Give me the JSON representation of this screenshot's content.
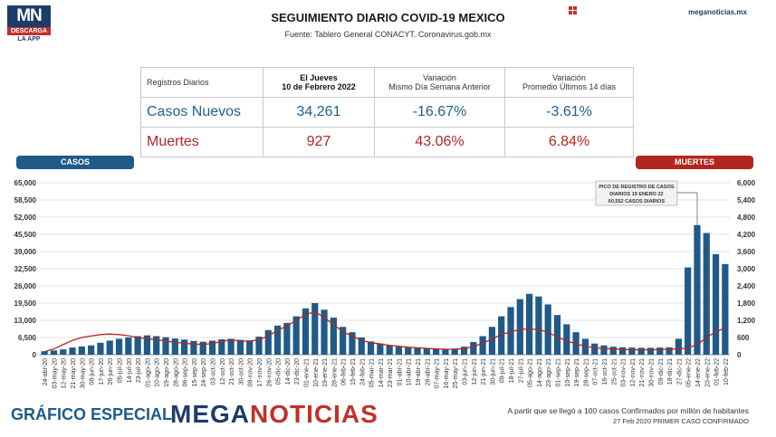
{
  "header": {
    "logo_top": "MN",
    "logo_mid": "DESCARGA",
    "logo_bottom": "LA APP",
    "title": "SEGUIMIENTO DIARIO COVID-19 MEXICO",
    "subtitle": "Fuente: Tablero General CONACYT. Coronavirus.gob.mx",
    "site": "meganoticias.mx",
    "grid_icon": "grid-icon"
  },
  "summary": {
    "col1_header": "Registros Diarios",
    "col2_header_line1": "El Jueves",
    "col2_header_line2": "10 de Febrero 2022",
    "col3_header_line1": "Variación",
    "col3_header_line2": "Mismo Día Semana Anterior",
    "col4_header_line1": "Variación",
    "col4_header_line2": "Promedio Últimos 14 días",
    "rows": [
      {
        "label": "Casos Nuevos",
        "value": "34,261",
        "var_week": "-16.67%",
        "var_14": "-3.61%"
      },
      {
        "label": "Muertes",
        "value": "927",
        "var_week": "43.06%",
        "var_14": "6.84%"
      }
    ]
  },
  "tags": {
    "casos": "CASOS",
    "muertes": "MUERTES"
  },
  "annotation": {
    "line1": "PICO DE REGISTRO DE CASOS",
    "line2": "DIARIOS 19 ENERO 22",
    "line3": "60,552 CASOS DIARIOS"
  },
  "footer": {
    "left": "GRÁFICO ESPECIAL",
    "brand_part1": "MEGA",
    "brand_part2": "NOTICIAS",
    "note1": "A partir que se llegó a 100 casos Confirmados por millón de habitantes",
    "note2": "27 Feb 2020 PRIMER CASO CONFIRMADO"
  },
  "colors": {
    "cases": "#1f5a88",
    "deaths": "#b3261e",
    "grid": "#e2e2e2"
  },
  "chart_data": {
    "type": "bar",
    "x_tick_labels": [
      "24-abr-20",
      "03-may-20",
      "12-may-20",
      "21-may-20",
      "30-may-20",
      "08-jun-20",
      "17-jun-20",
      "26-jun-20",
      "05-jul-20",
      "14-jul-20",
      "23-jul-20",
      "01-ago-20",
      "10-ago-20",
      "19-ago-20",
      "28-ago-20",
      "06-sep-20",
      "15-sep-20",
      "24-sep-20",
      "03-oct-20",
      "12-oct-20",
      "21-oct-20",
      "30-oct-20",
      "08-nov-20",
      "17-nov-20",
      "26-nov-20",
      "05-dic-20",
      "14-dic-20",
      "23-dic-20",
      "01-ene-21",
      "10-ene-21",
      "19-ene-21",
      "28-ene-21",
      "06-feb-21",
      "15-feb-21",
      "24-feb-21",
      "05-mar-21",
      "14-mar-21",
      "23-mar-21",
      "01-abr-21",
      "10-abr-21",
      "19-abr-21",
      "28-abr-21",
      "07-may-21",
      "16-may-21",
      "25-may-21",
      "03-jun-21",
      "12-jun-21",
      "21-jun-21",
      "30-jun-21",
      "09-jul-21",
      "18-jul-21",
      "27-jul-21",
      "05-ago-21",
      "14-ago-21",
      "23-ago-21",
      "01-sep-21",
      "10-sep-21",
      "19-sep-21",
      "28-sep-21",
      "07-oct-21",
      "16-oct-21",
      "25-oct-21",
      "03-nov-21",
      "12-nov-21",
      "21-nov-21",
      "30-nov-21",
      "09-dic-21",
      "18-dic-21",
      "27-dic-21",
      "05-ene-22",
      "14-ene-22",
      "23-ene-22",
      "01-feb-22",
      "10-feb-22"
    ],
    "left_axis": {
      "label": "CASOS",
      "min": 0,
      "max": 65000,
      "ticks": [
        "65,000",
        "58,500",
        "52,000",
        "45,500",
        "39,000",
        "32,500",
        "26,000",
        "19,500",
        "13,000",
        "6,500",
        "0"
      ]
    },
    "right_axis": {
      "label": "MUERTES",
      "min": 0,
      "max": 6000,
      "ticks": [
        "6,000",
        "5,400",
        "4,800",
        "4,200",
        "3,600",
        "3,000",
        "2,400",
        "1,800",
        "1,200",
        "600",
        "0"
      ]
    },
    "series": [
      {
        "name": "CASOS",
        "axis": "left",
        "values": [
          1300,
          1600,
          2000,
          2700,
          3100,
          3500,
          4500,
          5300,
          6000,
          6500,
          7000,
          7300,
          7000,
          6600,
          6100,
          5700,
          5200,
          4900,
          5300,
          5800,
          6000,
          5600,
          5400,
          6800,
          9300,
          11000,
          12000,
          14500,
          17500,
          19500,
          17000,
          14000,
          10500,
          8500,
          6500,
          5000,
          4200,
          3500,
          3000,
          2700,
          2500,
          2400,
          2200,
          2200,
          2300,
          3000,
          4800,
          7000,
          10500,
          14500,
          18000,
          21000,
          23000,
          22000,
          19000,
          15000,
          11500,
          8500,
          6000,
          4200,
          3500,
          3000,
          2800,
          2700,
          2600,
          2600,
          2700,
          2800,
          6000,
          33000,
          49000,
          46000,
          38000,
          34261
        ]
      },
      {
        "name": "MUERTES",
        "axis": "right",
        "values": [
          100,
          200,
          350,
          500,
          600,
          650,
          700,
          720,
          700,
          660,
          600,
          560,
          520,
          480,
          430,
          400,
          370,
          360,
          390,
          460,
          520,
          480,
          470,
          520,
          650,
          850,
          1000,
          1200,
          1400,
          1500,
          1300,
          1050,
          800,
          650,
          500,
          420,
          380,
          330,
          290,
          260,
          240,
          220,
          200,
          190,
          190,
          210,
          280,
          400,
          550,
          700,
          800,
          880,
          900,
          870,
          780,
          620,
          480,
          380,
          290,
          240,
          210,
          200,
          180,
          170,
          170,
          170,
          180,
          190,
          200,
          230,
          350,
          600,
          800,
          927
        ]
      }
    ]
  }
}
